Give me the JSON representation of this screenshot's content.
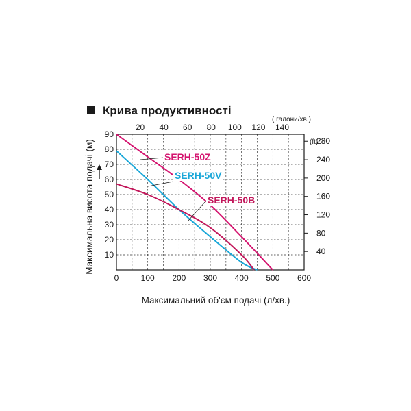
{
  "chart_data": {
    "type": "line",
    "title": "Крива продуктивності",
    "xlabel": "Максимальний об'єм подачі (л/хв.)",
    "ylabel": "Максимальна висота подачі (м)",
    "xlim": [
      0,
      600
    ],
    "ylim": [
      0,
      90
    ],
    "xticks": [
      "0",
      "100",
      "200",
      "300",
      "400",
      "500",
      "600"
    ],
    "yticks": [
      "10",
      "20",
      "30",
      "40",
      "50",
      "60",
      "70",
      "80",
      "90"
    ],
    "secondary_x": {
      "unit_label": "( галони/хв.)",
      "ticks": [
        "20",
        "40",
        "60",
        "80",
        "100",
        "120",
        "140"
      ],
      "values": [
        20,
        40,
        60,
        80,
        100,
        120,
        140
      ]
    },
    "secondary_y": {
      "unit_label": "(ft)",
      "ticks": [
        "40",
        "80",
        "120",
        "160",
        "200",
        "240",
        "280"
      ],
      "values": [
        40,
        80,
        120,
        160,
        200,
        240,
        280
      ]
    },
    "grid": true,
    "series": [
      {
        "name": "SERH-50Z",
        "color": "#d4146f",
        "x": [
          0,
          100,
          200,
          300,
          400,
          500
        ],
        "y": [
          90,
          75,
          60,
          43,
          22,
          0
        ]
      },
      {
        "name": "SERH-50V",
        "color": "#1aa7d8",
        "x": [
          0,
          100,
          200,
          300,
          400,
          450
        ],
        "y": [
          79,
          60,
          40,
          22,
          5,
          0
        ]
      },
      {
        "name": "SERH-50B",
        "color": "#c2185b",
        "x": [
          0,
          100,
          200,
          300,
          400,
          440
        ],
        "y": [
          57,
          50,
          40,
          28,
          10,
          0
        ]
      }
    ]
  }
}
